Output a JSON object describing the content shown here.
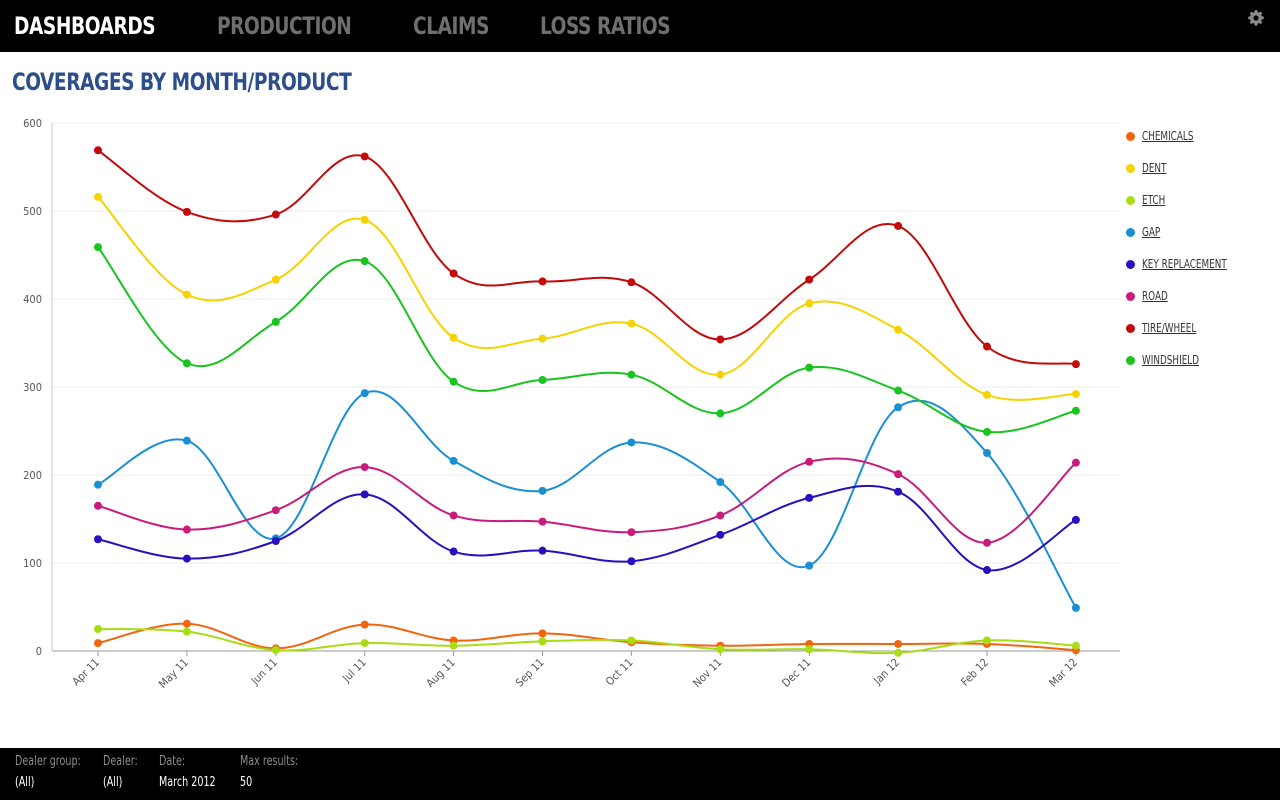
{
  "nav": {
    "tabs": [
      {
        "label": "DASHBOARDS",
        "active": true
      },
      {
        "label": "PRODUCTION",
        "active": false
      },
      {
        "label": "CLAIMS",
        "active": false
      },
      {
        "label": "LOSS RATIOS",
        "active": false
      }
    ],
    "settings_icon": "gear-icon"
  },
  "page": {
    "title": "COVERAGES BY MONTH/PRODUCT"
  },
  "chart_data": {
    "type": "line",
    "title": "COVERAGES BY MONTH/PRODUCT",
    "xlabel": "",
    "ylabel": "",
    "ylim": [
      0,
      600
    ],
    "y_ticks": [
      0,
      100,
      200,
      300,
      400,
      500,
      600
    ],
    "grid": "horizontal",
    "legend_position": "right",
    "categories": [
      "Apr 11",
      "May 11",
      "Jun 11",
      "Jul 11",
      "Aug 11",
      "Sep 11",
      "Oct 11",
      "Nov 11",
      "Dec 11",
      "Jan 12",
      "Feb 12",
      "Mar 12"
    ],
    "series": [
      {
        "name": "CHEMICALS",
        "color": "#f2650f",
        "values": [
          9,
          31,
          3,
          30,
          12,
          20,
          10,
          6,
          8,
          8,
          8,
          1
        ]
      },
      {
        "name": "DENT",
        "color": "#f6d300",
        "values": [
          516,
          405,
          422,
          490,
          356,
          355,
          372,
          314,
          395,
          365,
          291,
          292
        ]
      },
      {
        "name": "ETCH",
        "color": "#a8dc13",
        "values": [
          25,
          22,
          1,
          9,
          6,
          11,
          12,
          2,
          2,
          -2,
          12,
          6
        ]
      },
      {
        "name": "GAP",
        "color": "#1a8fd1",
        "values": [
          189,
          239,
          128,
          293,
          216,
          182,
          237,
          192,
          97,
          277,
          225,
          49
        ]
      },
      {
        "name": "KEY REPLACEMENT",
        "color": "#2a0fbe",
        "values": [
          127,
          105,
          125,
          178,
          113,
          114,
          102,
          132,
          174,
          181,
          92,
          149
        ]
      },
      {
        "name": "ROAD",
        "color": "#c81b7c",
        "values": [
          165,
          138,
          160,
          209,
          154,
          147,
          135,
          154,
          215,
          201,
          123,
          214
        ]
      },
      {
        "name": "TIRE/WHEEL",
        "color": "#c20a0a",
        "values": [
          569,
          499,
          496,
          562,
          429,
          420,
          419,
          354,
          422,
          483,
          346,
          326
        ]
      },
      {
        "name": "WINDSHIELD",
        "color": "#18c41d",
        "values": [
          459,
          327,
          374,
          443,
          306,
          308,
          314,
          270,
          322,
          296,
          249,
          273
        ]
      }
    ]
  },
  "legend": {
    "items": [
      {
        "label": "CHEMICALS",
        "color": "#f2650f"
      },
      {
        "label": "DENT",
        "color": "#f6d300"
      },
      {
        "label": "ETCH",
        "color": "#a8dc13"
      },
      {
        "label": "GAP",
        "color": "#1a8fd1"
      },
      {
        "label": "KEY REPLACEMENT",
        "color": "#2a0fbe"
      },
      {
        "label": "ROAD",
        "color": "#c81b7c"
      },
      {
        "label": "TIRE/WHEEL",
        "color": "#c20a0a"
      },
      {
        "label": "WINDSHIELD",
        "color": "#18c41d"
      }
    ]
  },
  "footer": {
    "filters": [
      {
        "label": "Dealer group:",
        "value": "(All)"
      },
      {
        "label": "Dealer:",
        "value": "(All)"
      },
      {
        "label": "Date:",
        "value": "March 2012"
      },
      {
        "label": "Max results:",
        "value": "50"
      }
    ]
  }
}
